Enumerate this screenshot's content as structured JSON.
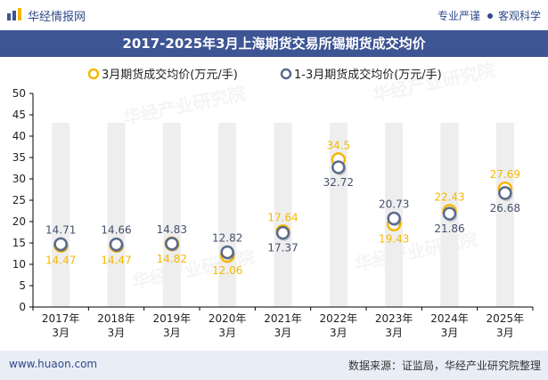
{
  "header": {
    "brand": "华经情报网",
    "slogan_left": "专业严谨",
    "slogan_right": "客观科学"
  },
  "footer": {
    "url": "www.huaon.com",
    "source": "数据来源：证监局，华经产业研究院整理"
  },
  "watermark": "华经产业研究院",
  "colors": {
    "title_bar": "#3e5594",
    "series_march": "#f5b800",
    "series_jan_mar": "#5a6b8c",
    "bar_bg": "#eeeeee"
  },
  "chart_data": {
    "type": "scatter",
    "title": "2017-2025年3月上海期货交易所锡期货成交均价",
    "categories": [
      "2017年\n3月",
      "2018年\n3月",
      "2019年\n3月",
      "2020年\n3月",
      "2021年\n3月",
      "2022年\n3月",
      "2023年\n3月",
      "2024年\n3月",
      "2025年\n3月"
    ],
    "series": [
      {
        "name": "3月期货成交均价(万元/手)",
        "values": [
          14.47,
          14.47,
          14.82,
          12.06,
          17.64,
          34.5,
          19.43,
          22.43,
          27.69
        ]
      },
      {
        "name": "1-3月期货成交均价(万元/手)",
        "values": [
          14.71,
          14.66,
          14.83,
          12.82,
          17.37,
          32.72,
          20.73,
          21.86,
          26.68
        ]
      }
    ],
    "ylim": [
      0,
      50
    ],
    "yticks": [
      0,
      5,
      10,
      15,
      20,
      25,
      30,
      35,
      40,
      45,
      50
    ],
    "legend": "top-center",
    "grid": false
  }
}
